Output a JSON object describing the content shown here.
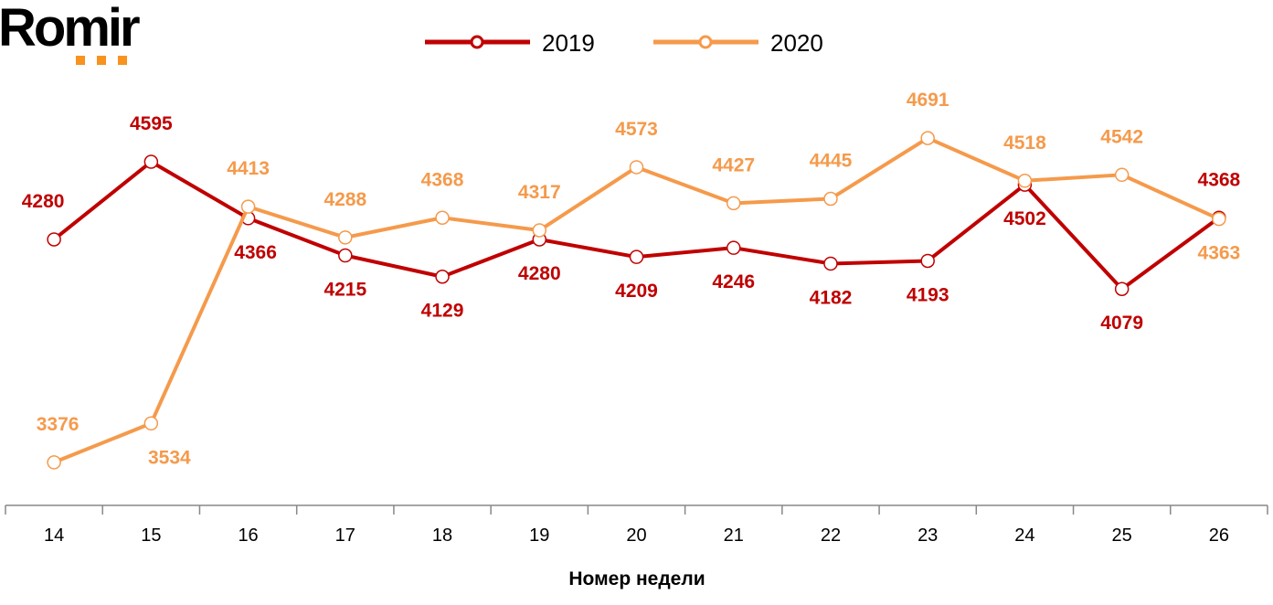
{
  "logo": {
    "text": "Romir",
    "dot_color": "#F7931E"
  },
  "chart_data": {
    "type": "line",
    "title": "",
    "xlabel": "Номер недели",
    "ylabel": "",
    "categories": [
      "14",
      "15",
      "16",
      "17",
      "18",
      "19",
      "20",
      "21",
      "22",
      "23",
      "24",
      "25",
      "26"
    ],
    "ylim": [
      3200,
      5250
    ],
    "grid": false,
    "legend_position": "top",
    "series": [
      {
        "name": "2019",
        "color": "#C00000",
        "values": [
          4280,
          4595,
          4366,
          4215,
          4129,
          4280,
          4209,
          4246,
          4182,
          4193,
          4502,
          4079,
          4368
        ]
      },
      {
        "name": "2020",
        "color": "#F59A4B",
        "values": [
          3376,
          3534,
          4413,
          4288,
          4368,
          4317,
          4573,
          4427,
          4445,
          4691,
          4518,
          4542,
          4363
        ]
      }
    ]
  }
}
